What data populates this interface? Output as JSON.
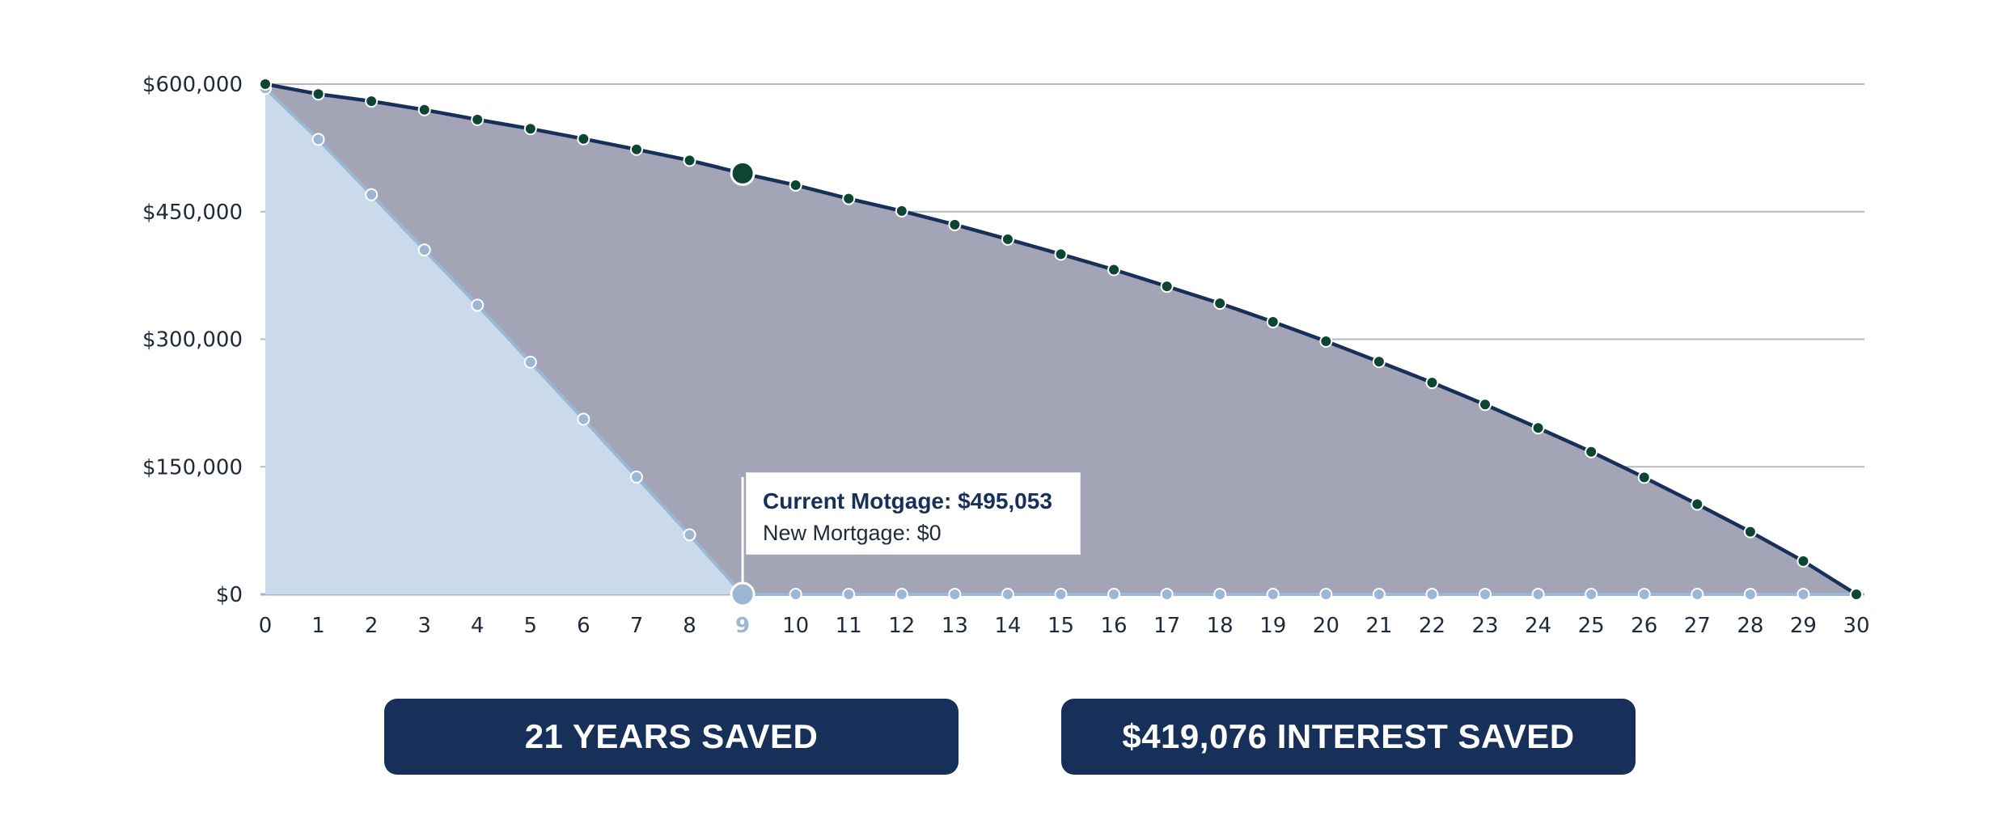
{
  "chart_data": {
    "type": "area",
    "x": [
      0,
      1,
      2,
      3,
      4,
      5,
      6,
      7,
      8,
      9,
      10,
      11,
      12,
      13,
      14,
      15,
      16,
      17,
      18,
      19,
      20,
      21,
      22,
      23,
      24,
      25,
      26,
      27,
      28,
      29,
      30
    ],
    "series": [
      {
        "name": "Current Motgage",
        "color": "#17305a",
        "marker_color": "#0d4535",
        "fill": "#a3a4b6",
        "values": [
          600000,
          588300,
          579900,
          569800,
          558300,
          547500,
          535600,
          523200,
          510300,
          495053,
          481200,
          465300,
          450800,
          434700,
          417600,
          400000,
          381800,
          362200,
          342200,
          320400,
          297600,
          273600,
          249000,
          223200,
          195700,
          167600,
          137500,
          106000,
          73600,
          39100,
          0
        ]
      },
      {
        "name": "New Mortgage",
        "color": "#9bb7d4",
        "marker_color": "#9bb7d4",
        "fill": "#cbdaea",
        "values": [
          595000,
          535000,
          470000,
          405000,
          340000,
          273000,
          206000,
          138000,
          70000,
          0,
          0,
          0,
          0,
          0,
          0,
          0,
          0,
          0,
          0,
          0,
          0,
          0,
          0,
          0,
          0,
          0,
          0,
          0,
          0,
          0,
          0
        ]
      }
    ],
    "y_ticks": [
      "$600,000",
      "$450,000",
      "$300,000",
      "$150,000",
      "$0"
    ],
    "y_tick_values": [
      600000,
      450000,
      300000,
      150000,
      0
    ],
    "ylim": [
      0,
      600000
    ],
    "xlim": [
      0,
      30
    ],
    "grid": true,
    "highlight_x": 9,
    "tooltip": {
      "line1": "Current Motgage: $495,053",
      "line2": "New Mortgage: $0"
    }
  },
  "badges": {
    "years": "21 YEARS SAVED",
    "interest": "$419,076 INTEREST SAVED"
  }
}
